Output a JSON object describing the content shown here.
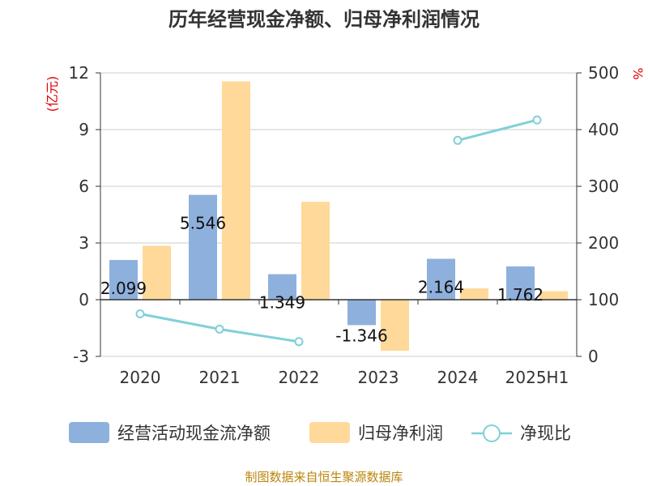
{
  "title": "历年经营现金净额、归母净利润情况",
  "source": "制图数据来自恒生聚源数据库",
  "chart_data": {
    "type": "bar",
    "categories": [
      "2020",
      "2021",
      "2022",
      "2023",
      "2024",
      "2025H1"
    ],
    "series": [
      {
        "name": "经营活动现金流净额",
        "type": "bar",
        "axis": "left",
        "color": "#8eb0dd",
        "values": [
          2.099,
          5.546,
          1.349,
          -1.346,
          2.164,
          1.762
        ],
        "labels": [
          "2.099",
          "5.546",
          "1.349",
          "-1.346",
          "2.164",
          "1.762"
        ]
      },
      {
        "name": "归母净利润",
        "type": "bar",
        "axis": "left",
        "color": "#ffd999",
        "values": [
          2.85,
          11.55,
          5.18,
          -2.7,
          0.6,
          0.45
        ]
      },
      {
        "name": "净现比",
        "type": "line",
        "axis": "right",
        "color": "#80d0d8",
        "values": [
          75,
          48,
          26,
          null,
          381,
          417
        ]
      }
    ],
    "left_axis": {
      "label": "(亿元)",
      "ylim": [
        -3,
        12
      ],
      "ticks": [
        "-3",
        "0",
        "3",
        "6",
        "9",
        "12"
      ]
    },
    "right_axis": {
      "label": "%",
      "ylim": [
        0,
        500
      ],
      "ticks": [
        "0",
        "100",
        "200",
        "300",
        "400",
        "500"
      ]
    },
    "grid": true,
    "legend_position": "bottom"
  }
}
